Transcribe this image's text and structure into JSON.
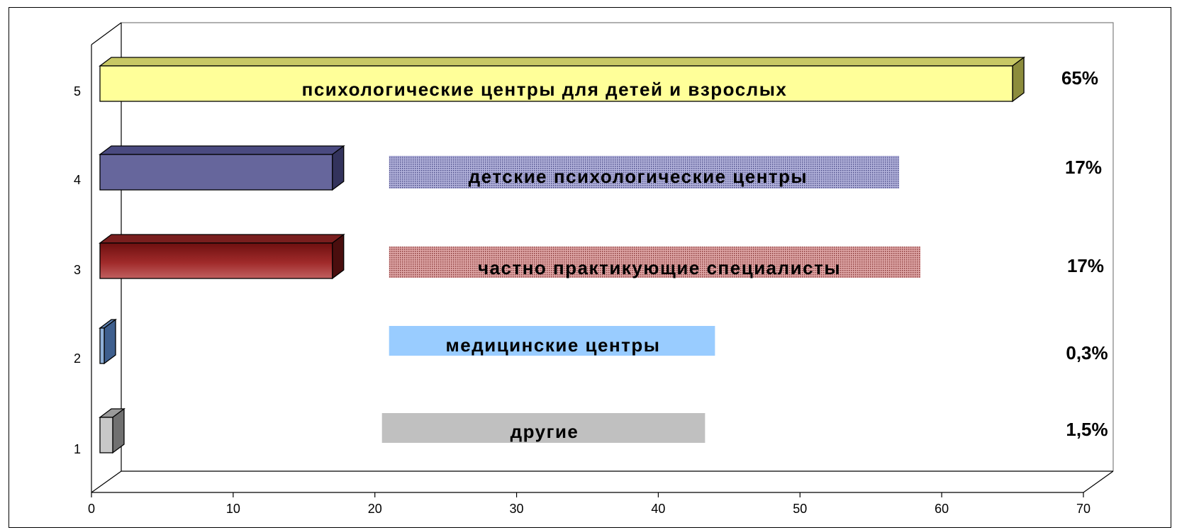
{
  "chart_data": {
    "type": "bar",
    "orientation": "horizontal",
    "three_d": true,
    "x_ticks": [
      "0",
      "10",
      "20",
      "30",
      "40",
      "50",
      "60",
      "70"
    ],
    "xlim": [
      0,
      70
    ],
    "y_ticks": [
      "1",
      "2",
      "3",
      "4",
      "5"
    ],
    "categories": [
      "1",
      "2",
      "3",
      "4",
      "5"
    ],
    "values": [
      1.5,
      0.3,
      17,
      17,
      65
    ],
    "value_labels": [
      "1,5%",
      "0,3%",
      "17%",
      "17%",
      "65%"
    ],
    "category_labels": [
      "другие",
      "медицинские центры",
      "частно практикующие специалисты",
      "детские психологические центры",
      "психологические центры для детей и взрослых"
    ],
    "colors": [
      "#c8c8c8",
      "#8fb0d8",
      "#962e2e",
      "#66669c",
      "#ffff99"
    ],
    "legend_box_colors": [
      "#c0c0c0",
      "#99ccff",
      "#c87a7a",
      "#7a7ab8",
      ""
    ],
    "legend_box_extent": [
      [
        20.5,
        43.3
      ],
      [
        21,
        44
      ],
      [
        21,
        58.5
      ],
      [
        21,
        57
      ],
      []
    ],
    "grid": false,
    "legend": "inline"
  }
}
